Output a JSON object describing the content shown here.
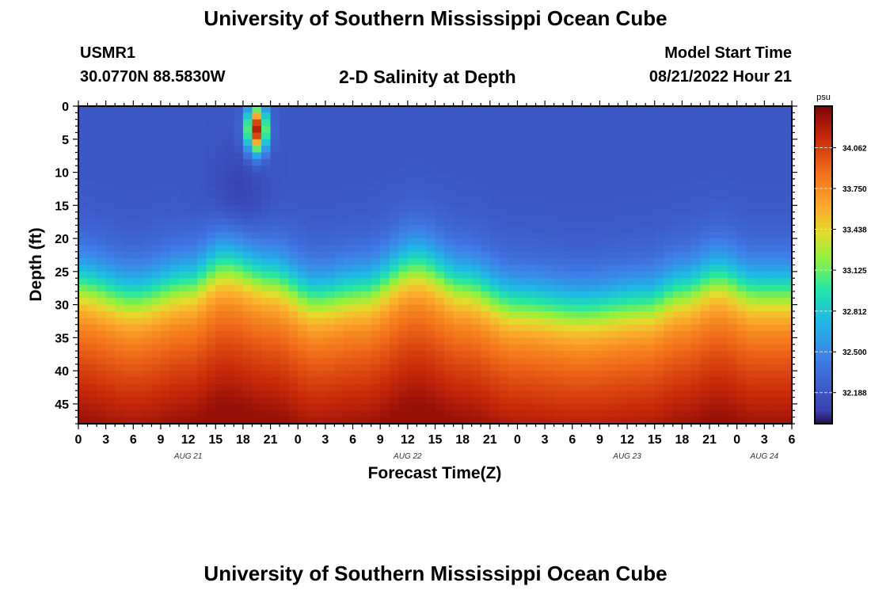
{
  "page": {
    "title": "University of Southern Mississippi Ocean Cube",
    "station_id": "USMR1",
    "station_coords": "30.0770N  88.5830W",
    "plot_title": "2-D Salinity at Depth",
    "start_label": "Model Start Time",
    "start_time": "08/21/2022 Hour 21",
    "footer_title": "University of Southern Mississippi Ocean Cube"
  },
  "chart_data": {
    "type": "heatmap",
    "title": "2-D Salinity at Depth",
    "xlabel": "Forecast Time(Z)",
    "ylabel": "Depth (ft)",
    "x_tick_labels": [
      "0",
      "3",
      "6",
      "9",
      "12",
      "15",
      "18",
      "21",
      "0",
      "3",
      "6",
      "9",
      "12",
      "15",
      "18",
      "21",
      "0",
      "3",
      "6",
      "9",
      "12",
      "15",
      "18",
      "21",
      "0",
      "3",
      "6"
    ],
    "date_labels": [
      {
        "label": "AUG 21",
        "hour": 12
      },
      {
        "label": "AUG 22",
        "hour": 36
      },
      {
        "label": "AUG 23",
        "hour": 60
      },
      {
        "label": "AUG 24",
        "hour": 75
      }
    ],
    "xlim_hours": [
      0,
      78
    ],
    "y_ticks": [
      0,
      5,
      10,
      15,
      20,
      25,
      30,
      35,
      40,
      45
    ],
    "ylim": [
      0,
      48
    ],
    "colorbar": {
      "unit": "psu",
      "min": 31.95,
      "max": 34.38,
      "ticks": [
        34.062,
        33.75,
        33.438,
        33.125,
        32.812,
        32.5,
        32.188
      ],
      "tick_labels": [
        "34.062",
        "33.750",
        "33.438",
        "33.125",
        "32.812",
        "32.500",
        "32.188"
      ]
    },
    "interface_depth_ft": [
      {
        "hour": 0,
        "depth": 26
      },
      {
        "hour": 6,
        "depth": 28
      },
      {
        "hour": 12,
        "depth": 26
      },
      {
        "hour": 16,
        "depth": 23
      },
      {
        "hour": 21,
        "depth": 25
      },
      {
        "hour": 26,
        "depth": 28
      },
      {
        "hour": 31,
        "depth": 27
      },
      {
        "hour": 37,
        "depth": 23
      },
      {
        "hour": 42,
        "depth": 26
      },
      {
        "hour": 48,
        "depth": 29
      },
      {
        "hour": 55,
        "depth": 30
      },
      {
        "hour": 62,
        "depth": 29
      },
      {
        "hour": 66,
        "depth": 27
      },
      {
        "hour": 70,
        "depth": 25
      },
      {
        "hour": 74,
        "depth": 27
      },
      {
        "hour": 78,
        "depth": 27
      }
    ],
    "surface_salinity_psu": 32.2,
    "bottom_salinity_psu": 34.3,
    "high_salinity_anomaly": {
      "hour_range": [
        18,
        21
      ],
      "depth_range": [
        0,
        10
      ],
      "peak_psu": 34.3
    },
    "low_salinity_anomaly": {
      "hour_range": [
        15,
        20
      ],
      "depth_range": [
        5,
        22
      ],
      "min_psu": 32.05
    },
    "grid": false
  }
}
